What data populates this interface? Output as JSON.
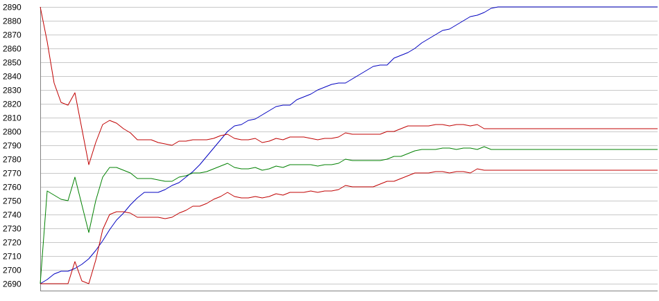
{
  "chart_data": {
    "type": "line",
    "title": "",
    "xlabel": "",
    "ylabel": "",
    "ylim": [
      2690,
      2890
    ],
    "y_ticks": [
      2690,
      2700,
      2710,
      2720,
      2730,
      2740,
      2750,
      2760,
      2770,
      2780,
      2790,
      2800,
      2810,
      2820,
      2830,
      2840,
      2850,
      2860,
      2870,
      2880,
      2890
    ],
    "x": [
      0,
      1,
      2,
      3,
      4,
      5,
      6,
      7,
      8,
      9,
      10,
      11,
      12,
      13,
      14,
      15,
      16,
      17,
      18,
      19,
      20,
      21,
      22,
      23,
      24,
      25,
      26,
      27,
      28,
      29,
      30,
      31,
      32,
      33,
      34,
      35,
      36,
      37,
      38,
      39,
      40,
      41,
      42,
      43,
      44,
      45,
      46,
      47,
      48,
      49,
      50,
      51,
      52,
      53,
      54,
      55,
      56,
      57,
      58,
      59,
      60,
      61,
      62,
      63,
      64,
      65,
      66,
      67,
      68,
      69,
      70,
      71,
      72,
      73,
      74,
      75,
      76,
      77,
      78,
      79,
      80,
      81,
      82,
      83,
      84,
      85,
      86,
      87,
      88,
      89
    ],
    "grid": true,
    "legend": "none",
    "series": [
      {
        "color": "#0000c0",
        "values": [
          2690,
          2693,
          2697,
          2699,
          2699,
          2701,
          2704,
          2708,
          2714,
          2721,
          2729,
          2736,
          2741,
          2747,
          2752,
          2756,
          2756,
          2756,
          2758,
          2761,
          2763,
          2767,
          2771,
          2776,
          2782,
          2788,
          2794,
          2800,
          2804,
          2805,
          2808,
          2809,
          2812,
          2815,
          2818,
          2819,
          2819,
          2823,
          2825,
          2827,
          2830,
          2832,
          2834,
          2835,
          2835,
          2838,
          2841,
          2844,
          2847,
          2848,
          2848,
          2853,
          2855,
          2857,
          2860,
          2864,
          2867,
          2870,
          2873,
          2874,
          2877,
          2880,
          2883,
          2884,
          2886,
          2889,
          2890,
          2890,
          2890,
          2890,
          2890,
          2890,
          2890,
          2890,
          2890,
          2890,
          2890,
          2890,
          2890,
          2890,
          2890,
          2890,
          2890,
          2890,
          2890,
          2890,
          2890,
          2890,
          2890,
          2890
        ]
      },
      {
        "color": "#c00000",
        "values": [
          2890,
          2865,
          2835,
          2821,
          2819,
          2828,
          2802,
          2776,
          2792,
          2805,
          2808,
          2806,
          2802,
          2799,
          2794,
          2794,
          2794,
          2792,
          2791,
          2790,
          2793,
          2793,
          2794,
          2794,
          2794,
          2795,
          2797,
          2798,
          2795,
          2794,
          2794,
          2795,
          2792,
          2793,
          2795,
          2794,
          2796,
          2796,
          2796,
          2795,
          2794,
          2795,
          2795,
          2796,
          2799,
          2798,
          2798,
          2798,
          2798,
          2798,
          2800,
          2800,
          2802,
          2804,
          2804,
          2804,
          2804,
          2805,
          2805,
          2804,
          2805,
          2805,
          2804,
          2805,
          2802,
          2802,
          2802,
          2802,
          2802,
          2802,
          2802,
          2802,
          2802,
          2802,
          2802,
          2802,
          2802,
          2802,
          2802,
          2802,
          2802,
          2802,
          2802,
          2802,
          2802,
          2802,
          2802,
          2802,
          2802,
          2802
        ]
      },
      {
        "color": "#008000",
        "values": [
          2690,
          2757,
          2754,
          2751,
          2750,
          2767,
          2747,
          2727,
          2750,
          2767,
          2774,
          2774,
          2772,
          2770,
          2766,
          2766,
          2766,
          2765,
          2764,
          2764,
          2767,
          2768,
          2770,
          2770,
          2771,
          2773,
          2775,
          2777,
          2774,
          2773,
          2773,
          2774,
          2772,
          2773,
          2775,
          2774,
          2776,
          2776,
          2776,
          2776,
          2775,
          2776,
          2776,
          2777,
          2780,
          2779,
          2779,
          2779,
          2779,
          2779,
          2780,
          2782,
          2782,
          2784,
          2786,
          2787,
          2787,
          2787,
          2788,
          2788,
          2787,
          2788,
          2788,
          2787,
          2789,
          2787,
          2787,
          2787,
          2787,
          2787,
          2787,
          2787,
          2787,
          2787,
          2787,
          2787,
          2787,
          2787,
          2787,
          2787,
          2787,
          2787,
          2787,
          2787,
          2787,
          2787,
          2787,
          2787,
          2787,
          2787
        ]
      },
      {
        "color": "#c00000",
        "values": [
          2690,
          2690,
          2690,
          2690,
          2690,
          2706,
          2692,
          2690,
          2707,
          2729,
          2740,
          2742,
          2742,
          2741,
          2738,
          2738,
          2738,
          2738,
          2737,
          2738,
          2741,
          2743,
          2746,
          2746,
          2748,
          2751,
          2753,
          2756,
          2753,
          2752,
          2752,
          2753,
          2752,
          2753,
          2755,
          2754,
          2756,
          2756,
          2756,
          2757,
          2756,
          2757,
          2757,
          2758,
          2761,
          2760,
          2760,
          2760,
          2760,
          2762,
          2764,
          2764,
          2766,
          2768,
          2770,
          2770,
          2770,
          2771,
          2771,
          2770,
          2771,
          2771,
          2770,
          2773,
          2772,
          2772,
          2772,
          2772,
          2772,
          2772,
          2772,
          2772,
          2772,
          2772,
          2772,
          2772,
          2772,
          2772,
          2772,
          2772,
          2772,
          2772,
          2772,
          2772,
          2772,
          2772,
          2772,
          2772,
          2772,
          2772
        ]
      }
    ]
  }
}
